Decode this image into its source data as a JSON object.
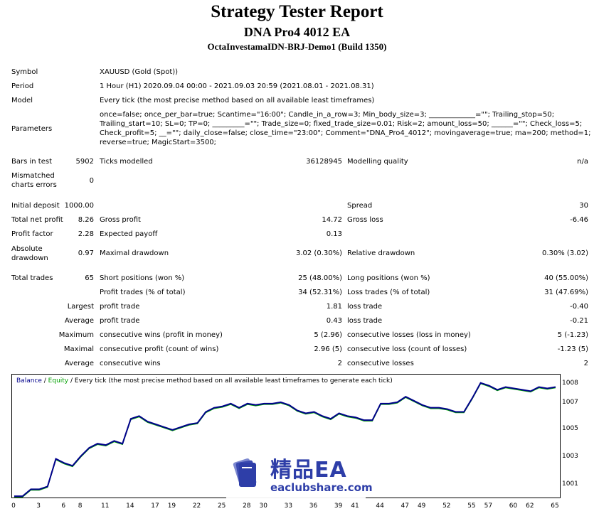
{
  "header": {
    "title": "Strategy Tester Report",
    "ea_name": "DNA Pro4 4012 EA",
    "account": "OctaInvestamaIDN-BRJ-Demo1 (Build 1350)"
  },
  "info": {
    "symbol_label": "Symbol",
    "symbol_value": "XAUUSD (Gold (Spot))",
    "period_label": "Period",
    "period_value": "1 Hour (H1) 2020.09.04 00:00 - 2021.09.03 20:59 (2021.08.01 - 2021.08.31)",
    "model_label": "Model",
    "model_value": "Every tick (the most precise method based on all available least timeframes)",
    "parameters_label": "Parameters",
    "parameters_lines": [
      "once=false; once_per_bar=true; Scantime=\"16:00\"; Candle_in_a_row=3; Min_body_size=3; _____________=\"\"; Trailing_stop=50;",
      "Trailing_start=10; SL=0; TP=0; _________=\"\"; Trade_size=0; fixed_trade_size=0.01; Risk=2; amount_loss=50; ______=\"\"; Check_loss=5;",
      "Check_profit=5; __=\"\"; daily_close=false; close_time=\"23:00\"; Comment=\"DNA_Pro4_4012\"; movingaverage=true; ma=200; method=1;",
      "reverse=true; MagicStart=3500;"
    ]
  },
  "stats": {
    "bars_label": "Bars in test",
    "bars_value": "5902",
    "ticks_label": "Ticks modelled",
    "ticks_value": "36128945",
    "quality_label": "Modelling quality",
    "quality_value": "n/a",
    "mismatch_label_1": "Mismatched",
    "mismatch_label_2": "charts errors",
    "mismatch_value": "0",
    "deposit_label": "Initial deposit",
    "deposit_value": "1000.00",
    "spread_label": "Spread",
    "spread_value": "30",
    "net_profit_label": "Total net profit",
    "net_profit_value": "8.26",
    "gross_profit_label": "Gross profit",
    "gross_profit_value": "14.72",
    "gross_loss_label": "Gross loss",
    "gross_loss_value": "-6.46",
    "profit_factor_label": "Profit factor",
    "profit_factor_value": "2.28",
    "payoff_label": "Expected payoff",
    "payoff_value": "0.13",
    "abs_dd_label_1": "Absolute",
    "abs_dd_label_2": "drawdown",
    "abs_dd_value": "0.97",
    "max_dd_label": "Maximal drawdown",
    "max_dd_value": "3.02 (0.30%)",
    "rel_dd_label": "Relative drawdown",
    "rel_dd_value": "0.30% (3.02)",
    "total_trades_label": "Total trades",
    "total_trades_value": "65",
    "short_label": "Short positions (won %)",
    "short_value": "25 (48.00%)",
    "long_label": "Long positions (won %)",
    "long_value": "40 (55.00%)",
    "profit_trades_label": "Profit trades (% of total)",
    "profit_trades_value": "34 (52.31%)",
    "loss_trades_label": "Loss trades (% of total)",
    "loss_trades_value": "31 (47.69%)",
    "largest_label": "Largest",
    "largest_profit_label": "profit trade",
    "largest_profit_value": "1.81",
    "largest_loss_label": "loss trade",
    "largest_loss_value": "-0.40",
    "average_label": "Average",
    "average_profit_label": "profit trade",
    "average_profit_value": "0.43",
    "average_loss_label": "loss trade",
    "average_loss_value": "-0.21",
    "maximum_label": "Maximum",
    "max_wins_label": "consecutive wins (profit in money)",
    "max_wins_value": "5 (2.96)",
    "max_losses_label": "consecutive losses (loss in money)",
    "max_losses_value": "5 (-1.23)",
    "maximal_label": "Maximal",
    "maximal_profit_label": "consecutive profit (count of wins)",
    "maximal_profit_value": "2.96 (5)",
    "maximal_loss_label": "consecutive loss (count of losses)",
    "maximal_loss_value": "-1.23 (5)",
    "avg2_label": "Average",
    "avg_wins_label": "consecutive wins",
    "avg_wins_value": "2",
    "avg_losses_label": "consecutive losses",
    "avg_losses_value": "2"
  },
  "chart_data": {
    "type": "line",
    "legend": {
      "balance": "Balance",
      "sep": " / ",
      "equity": "Equity",
      "desc": " / Every tick (the most precise method based on all available least timeframes to generate each tick)"
    },
    "colors": {
      "balance": "#00008b",
      "equity": "#00a000"
    },
    "y_ticks": [
      "1008",
      "1007",
      "1005",
      "1003",
      "1001"
    ],
    "y_tick_values": [
      1008.3,
      1006.9,
      1005.0,
      1003.0,
      1001.0
    ],
    "x_ticks": [
      "0",
      "3",
      "6",
      "8",
      "11",
      "14",
      "17",
      "19",
      "22",
      "25",
      "28",
      "30",
      "33",
      "36",
      "39",
      "41",
      "44",
      "47",
      "49",
      "52",
      "55",
      "57",
      "60",
      "62",
      "65"
    ],
    "xlim": [
      0,
      65
    ],
    "ylim": [
      1000.0,
      1009.0
    ],
    "balance": [
      [
        0,
        1000.2
      ],
      [
        1,
        1000.2
      ],
      [
        2,
        1000.7
      ],
      [
        3,
        1000.7
      ],
      [
        4,
        1000.9
      ],
      [
        5,
        1002.9
      ],
      [
        6,
        1002.6
      ],
      [
        7,
        1002.4
      ],
      [
        8,
        1003.1
      ],
      [
        9,
        1003.7
      ],
      [
        10,
        1004.0
      ],
      [
        11,
        1003.9
      ],
      [
        12,
        1004.2
      ],
      [
        13,
        1004.0
      ],
      [
        14,
        1005.8
      ],
      [
        15,
        1006.0
      ],
      [
        16,
        1005.6
      ],
      [
        17,
        1005.4
      ],
      [
        18,
        1005.2
      ],
      [
        19,
        1005.0
      ],
      [
        20,
        1005.2
      ],
      [
        21,
        1005.4
      ],
      [
        22,
        1005.5
      ],
      [
        23,
        1006.3
      ],
      [
        24,
        1006.6
      ],
      [
        25,
        1006.7
      ],
      [
        26,
        1006.9
      ],
      [
        27,
        1006.6
      ],
      [
        28,
        1006.9
      ],
      [
        29,
        1006.8
      ],
      [
        30,
        1006.9
      ],
      [
        31,
        1006.9
      ],
      [
        32,
        1007.0
      ],
      [
        33,
        1006.8
      ],
      [
        34,
        1006.4
      ],
      [
        35,
        1006.2
      ],
      [
        36,
        1006.3
      ],
      [
        37,
        1006.0
      ],
      [
        38,
        1005.8
      ],
      [
        39,
        1006.2
      ],
      [
        40,
        1006.0
      ],
      [
        41,
        1005.9
      ],
      [
        42,
        1005.7
      ],
      [
        43,
        1005.7
      ],
      [
        44,
        1006.9
      ],
      [
        45,
        1006.9
      ],
      [
        46,
        1007.0
      ],
      [
        47,
        1007.4
      ],
      [
        48,
        1007.1
      ],
      [
        49,
        1006.8
      ],
      [
        50,
        1006.6
      ],
      [
        51,
        1006.6
      ],
      [
        52,
        1006.5
      ],
      [
        53,
        1006.3
      ],
      [
        54,
        1006.3
      ],
      [
        55,
        1007.3
      ],
      [
        56,
        1008.4
      ],
      [
        57,
        1008.2
      ],
      [
        58,
        1007.9
      ],
      [
        59,
        1008.1
      ],
      [
        60,
        1008.0
      ],
      [
        61,
        1007.9
      ],
      [
        62,
        1007.8
      ],
      [
        63,
        1008.1
      ],
      [
        64,
        1008.0
      ],
      [
        65,
        1008.1
      ]
    ]
  },
  "watermark": {
    "title": "精品EA",
    "url": "eaclubshare.com"
  }
}
